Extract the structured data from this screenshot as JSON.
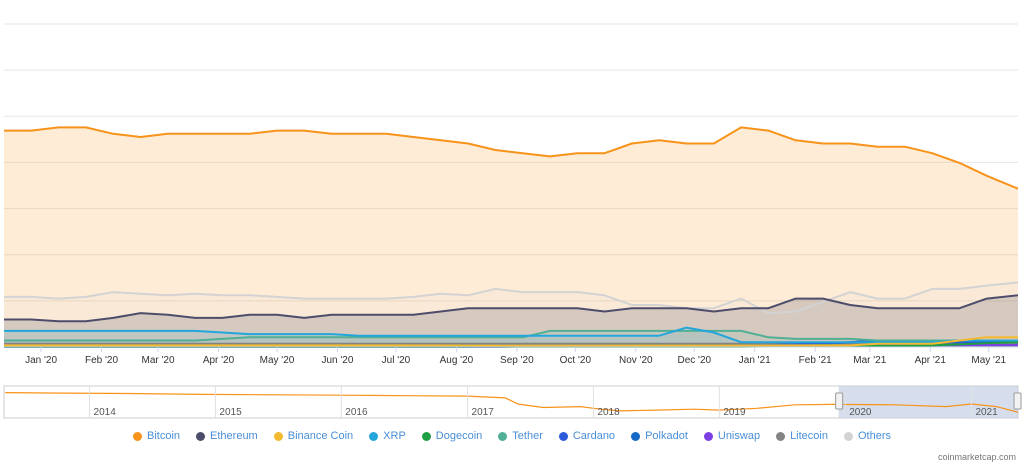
{
  "chart_data": {
    "type": "area",
    "title": "",
    "xlabel": "",
    "ylabel": "",
    "x_ticks": [
      "Jan '20",
      "Feb '20",
      "Mar '20",
      "Apr '20",
      "May '20",
      "Jun '20",
      "Jul '20",
      "Aug '20",
      "Sep '20",
      "Oct '20",
      "Nov '20",
      "Dec '20",
      "Jan '21",
      "Feb '21",
      "Mar '21",
      "Apr '21",
      "May '21"
    ],
    "x_range": [
      "2019-12-13",
      "2021-05-16"
    ],
    "y_range_percent": [
      0,
      100
    ],
    "grid": true,
    "legend_position": "bottom",
    "dates": [
      "2019-12-13",
      "2019-12-27",
      "2020-01-10",
      "2020-01-24",
      "2020-02-07",
      "2020-02-21",
      "2020-03-06",
      "2020-03-20",
      "2020-04-03",
      "2020-04-17",
      "2020-05-01",
      "2020-05-15",
      "2020-05-29",
      "2020-06-12",
      "2020-06-26",
      "2020-07-10",
      "2020-07-24",
      "2020-08-07",
      "2020-08-21",
      "2020-09-04",
      "2020-09-18",
      "2020-10-02",
      "2020-10-16",
      "2020-10-30",
      "2020-11-13",
      "2020-11-27",
      "2020-12-11",
      "2020-12-25",
      "2021-01-08",
      "2021-01-22",
      "2021-02-05",
      "2021-02-19",
      "2021-03-05",
      "2021-03-19",
      "2021-04-02",
      "2021-04-16",
      "2021-04-30",
      "2021-05-16"
    ],
    "series": [
      {
        "name": "Bitcoin",
        "color": "#f7931a",
        "values": [
          67,
          67,
          68,
          68,
          66,
          65,
          66,
          66,
          66,
          66,
          67,
          67,
          66,
          66,
          66,
          65,
          64,
          63,
          61,
          60,
          59,
          60,
          60,
          63,
          64,
          63,
          63,
          68,
          67,
          64,
          63,
          63,
          62,
          62,
          60,
          57,
          53,
          49
        ]
      },
      {
        "name": "Ethereum",
        "color": "#4d4d6b",
        "values": [
          8.5,
          8.5,
          8,
          8,
          9,
          10.5,
          10,
          9,
          9,
          10,
          10,
          9,
          10,
          10,
          10,
          10,
          11,
          12,
          12,
          12,
          12,
          12,
          11,
          12,
          12,
          12,
          11,
          12,
          12,
          15,
          15,
          13,
          12,
          12,
          12,
          12,
          15,
          16
        ]
      },
      {
        "name": "Binance Coin",
        "color": "#f3ba2f",
        "values": [
          0.5,
          0.5,
          0.5,
          0.5,
          0.5,
          0.5,
          0.5,
          0.5,
          0.5,
          0.5,
          0.5,
          0.5,
          0.5,
          0.5,
          0.5,
          0.5,
          0.5,
          0.5,
          0.5,
          0.5,
          0.5,
          0.5,
          0.5,
          0.5,
          0.5,
          0.5,
          0.5,
          0.5,
          0.5,
          0.5,
          0.5,
          0.5,
          1,
          1,
          1,
          2,
          3,
          3
        ]
      },
      {
        "name": "XRP",
        "color": "#23a6db",
        "values": [
          5,
          5,
          5,
          5,
          5,
          5,
          5,
          5,
          4.5,
          4,
          4,
          4,
          4,
          3.5,
          3.5,
          3.5,
          3.5,
          3.5,
          3.5,
          3.5,
          3.5,
          3.5,
          3.5,
          3.5,
          3.5,
          6,
          4.5,
          1.5,
          1.5,
          1.5,
          1.5,
          1.5,
          1.5,
          1.5,
          1.5,
          2,
          2,
          2
        ]
      },
      {
        "name": "Dogecoin",
        "color": "#1e9f44",
        "values": [
          0.1,
          0.1,
          0.1,
          0.1,
          0.1,
          0.1,
          0.1,
          0.1,
          0.1,
          0.1,
          0.1,
          0.1,
          0.1,
          0.1,
          0.1,
          0.1,
          0.1,
          0.1,
          0.1,
          0.1,
          0.1,
          0.1,
          0.1,
          0.1,
          0.1,
          0.1,
          0.1,
          0.1,
          0.2,
          0.3,
          0.6,
          0.4,
          0.4,
          0.4,
          0.5,
          0.8,
          1.2,
          1.5
        ]
      },
      {
        "name": "Tether",
        "color": "#50af95",
        "values": [
          2,
          2,
          2,
          2,
          2,
          2,
          2,
          2,
          2.5,
          3,
          3,
          3,
          3,
          3,
          3,
          3,
          3,
          3,
          3,
          3,
          5,
          5,
          5,
          5,
          5,
          5,
          5,
          5,
          3,
          2.5,
          2.5,
          2.5,
          2,
          2,
          2,
          2,
          2,
          2
        ]
      },
      {
        "name": "Cardano",
        "color": "#2a5ada",
        "values": [
          0.3,
          0.3,
          0.3,
          0.3,
          0.3,
          0.3,
          0.3,
          0.3,
          0.3,
          0.3,
          0.3,
          0.3,
          0.3,
          0.3,
          0.4,
          0.5,
          0.5,
          0.6,
          0.6,
          0.6,
          0.6,
          0.6,
          0.6,
          0.5,
          0.5,
          0.5,
          0.5,
          0.5,
          0.6,
          0.8,
          1.2,
          1.5,
          2,
          1.8,
          1.5,
          1.5,
          1.5,
          1.6
        ]
      },
      {
        "name": "Polkadot",
        "color": "#1569c7",
        "values": [
          0,
          0,
          0,
          0,
          0,
          0,
          0,
          0,
          0,
          0,
          0,
          0,
          0,
          0,
          0,
          0,
          0,
          0,
          0.5,
          0.6,
          0.6,
          0.6,
          0.6,
          0.6,
          0.6,
          0.6,
          0.6,
          0.6,
          0.6,
          0.8,
          1,
          1.5,
          2,
          1.5,
          1.5,
          1.5,
          1.5,
          1.5
        ]
      },
      {
        "name": "Uniswap",
        "color": "#7b3fe4",
        "values": [
          0,
          0,
          0,
          0,
          0,
          0,
          0,
          0,
          0,
          0,
          0,
          0,
          0,
          0,
          0,
          0,
          0,
          0,
          0,
          0.2,
          0.2,
          0.2,
          0.2,
          0.2,
          0.2,
          0.2,
          0.2,
          0.2,
          0.2,
          0.3,
          0.4,
          0.5,
          0.5,
          0.5,
          0.6,
          0.6,
          0.6,
          0.6
        ]
      },
      {
        "name": "Litecoin",
        "color": "#838383",
        "values": [
          1,
          1,
          1,
          1,
          1,
          1,
          1,
          1,
          1,
          1,
          1,
          1,
          1,
          1,
          1,
          1,
          1,
          1,
          1,
          1,
          1,
          1,
          1,
          1,
          1,
          1,
          1,
          1,
          1,
          1,
          1,
          1,
          1,
          1,
          1,
          1,
          1,
          1
        ]
      },
      {
        "name": "Others",
        "color": "#d3d3d3",
        "values": [
          15.5,
          15.5,
          15,
          15.5,
          17,
          16.5,
          16,
          16.5,
          16,
          16,
          15.5,
          15,
          15,
          15,
          15,
          15.5,
          16.5,
          16,
          18,
          17,
          17,
          17,
          16,
          13,
          13,
          12,
          12,
          15,
          10.5,
          11,
          14,
          17,
          15,
          15,
          18,
          18,
          19,
          20
        ]
      }
    ],
    "navigator": {
      "x_ticks": [
        "2014",
        "2015",
        "2016",
        "2017",
        "2018",
        "2019",
        "2020",
        "2021"
      ],
      "selected_range": [
        "2019-12-13",
        "2021-05-16"
      ]
    }
  },
  "legend": {
    "items": [
      {
        "label": "Bitcoin",
        "color": "#f7931a"
      },
      {
        "label": "Ethereum",
        "color": "#4d4d6b"
      },
      {
        "label": "Binance Coin",
        "color": "#f3ba2f"
      },
      {
        "label": "XRP",
        "color": "#23a6db"
      },
      {
        "label": "Dogecoin",
        "color": "#1e9f44"
      },
      {
        "label": "Tether",
        "color": "#50af95"
      },
      {
        "label": "Cardano",
        "color": "#2a5ada"
      },
      {
        "label": "Polkadot",
        "color": "#1569c7"
      },
      {
        "label": "Uniswap",
        "color": "#7b3fe4"
      },
      {
        "label": "Litecoin",
        "color": "#838383"
      },
      {
        "label": "Others",
        "color": "#d3d3d3"
      }
    ]
  },
  "credit": "coinmarketcap.com"
}
